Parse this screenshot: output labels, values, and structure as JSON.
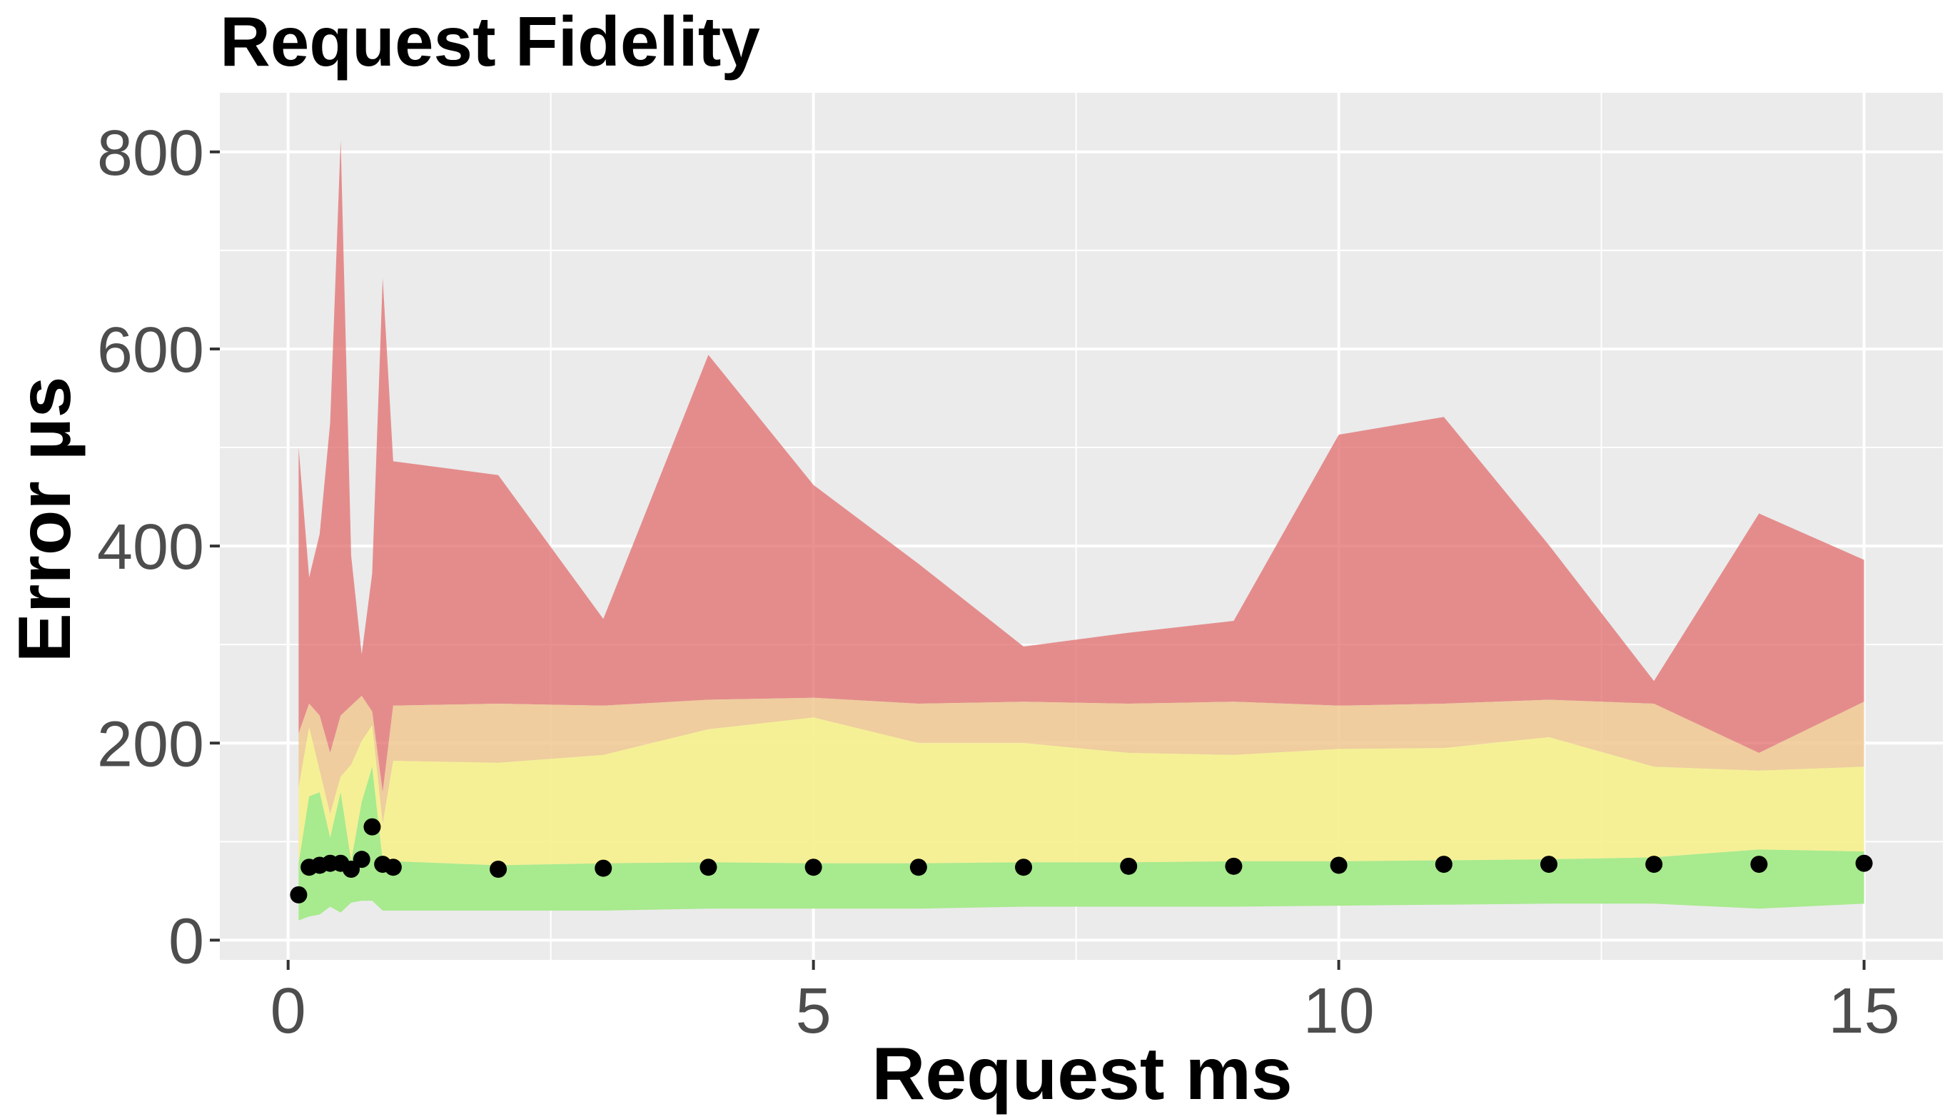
{
  "chart_data": {
    "type": "area",
    "title": "Request Fidelity",
    "xlabel": "Request ms",
    "ylabel": "Error µs",
    "xlim": [
      -0.65,
      15.75
    ],
    "ylim": [
      -20,
      860
    ],
    "x_ticks": [
      0,
      5,
      10,
      15
    ],
    "x_tick_labels": [
      "0",
      "5",
      "10",
      "15"
    ],
    "y_ticks": [
      0,
      200,
      400,
      600,
      800
    ],
    "y_tick_labels": [
      "0",
      "200",
      "400",
      "600",
      "800"
    ],
    "grid": true,
    "background": "#ebebeb",
    "legend": "none",
    "x": [
      0.1,
      0.2,
      0.3,
      0.4,
      0.5,
      0.6,
      0.7,
      0.8,
      0.9,
      1,
      2,
      3,
      4,
      5,
      6,
      7,
      8,
      9,
      10,
      11,
      12,
      13,
      14,
      15
    ],
    "bands": [
      {
        "color": "#e06666",
        "opacity": 0.72,
        "lower": [
          210,
          240,
          228,
          190,
          228,
          238,
          248,
          232,
          150,
          238,
          240,
          238,
          244,
          246,
          240,
          242,
          240,
          242,
          238,
          240,
          244,
          240,
          190,
          242
        ],
        "upper": [
          500,
          368,
          412,
          525,
          812,
          390,
          290,
          372,
          672,
          486,
          472,
          326,
          594,
          462,
          382,
          298,
          312,
          324,
          513,
          531,
          401,
          263,
          433,
          386
        ]
      },
      {
        "color": "#f0c890",
        "opacity": 0.85,
        "lower": [
          155,
          216,
          172,
          128,
          166,
          178,
          202,
          218,
          118,
          182,
          180,
          188,
          214,
          226,
          200,
          200,
          190,
          188,
          194,
          195,
          206,
          176,
          172,
          176
        ],
        "upper": [
          210,
          240,
          228,
          190,
          228,
          238,
          248,
          232,
          150,
          238,
          240,
          238,
          244,
          246,
          240,
          242,
          240,
          242,
          238,
          240,
          244,
          240,
          190,
          242
        ]
      },
      {
        "color": "#f5f090",
        "opacity": 0.95,
        "lower": [
          78,
          146,
          150,
          104,
          150,
          80,
          140,
          176,
          80,
          80,
          76,
          78,
          79,
          78,
          78,
          79,
          79,
          80,
          80,
          81,
          82,
          84,
          92,
          90
        ],
        "upper": [
          155,
          216,
          172,
          128,
          166,
          178,
          202,
          218,
          118,
          182,
          180,
          188,
          214,
          226,
          200,
          200,
          190,
          188,
          194,
          195,
          206,
          176,
          172,
          176
        ]
      },
      {
        "color": "#a8ea8e",
        "opacity": 1,
        "lower": [
          20,
          24,
          26,
          34,
          28,
          38,
          40,
          40,
          30,
          30,
          30,
          30,
          32,
          32,
          32,
          34,
          34,
          34,
          35,
          36,
          37,
          37,
          32,
          37
        ],
        "upper": [
          78,
          146,
          150,
          104,
          150,
          80,
          140,
          176,
          80,
          80,
          76,
          78,
          79,
          78,
          78,
          79,
          79,
          80,
          80,
          81,
          82,
          84,
          92,
          90
        ]
      }
    ],
    "points": {
      "x": [
        0.1,
        0.2,
        0.3,
        0.4,
        0.5,
        0.6,
        0.7,
        0.8,
        0.9,
        1,
        2,
        3,
        4,
        5,
        6,
        7,
        8,
        9,
        10,
        11,
        12,
        13,
        14,
        15
      ],
      "y": [
        46,
        74,
        76,
        78,
        78,
        72,
        82,
        115,
        77,
        74,
        72,
        73,
        74,
        74,
        74,
        74,
        75,
        75,
        76,
        77,
        77,
        77,
        77,
        78
      ],
      "color": "#000000"
    }
  }
}
